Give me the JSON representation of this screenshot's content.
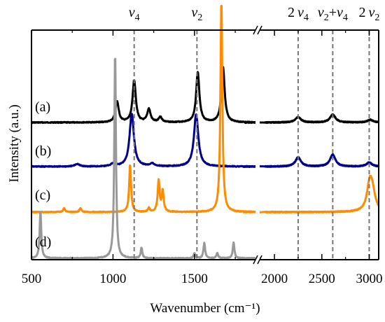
{
  "chart_data": {
    "type": "line",
    "title": "",
    "xlabel": "Wavenumber (cm⁻¹)",
    "ylabel": "Intensity (a.u.)",
    "x_axis_break": [
      1900,
      2000
    ],
    "segments": [
      {
        "xlim": [
          500,
          1900
        ],
        "ticks": [
          500,
          1000,
          1500
        ]
      },
      {
        "xlim": [
          1800,
          3100
        ],
        "ticks": [
          2000,
          2500,
          3000
        ]
      }
    ],
    "top_annotations": [
      {
        "id": "nu4",
        "base": "ν",
        "sub": "4",
        "prefix": "",
        "x": 1130
      },
      {
        "id": "nu2",
        "base": "ν",
        "sub": "2",
        "prefix": "",
        "x": 1515
      },
      {
        "id": "two-nu4",
        "base": "ν",
        "sub": "4",
        "prefix": "2",
        "x": 2250
      },
      {
        "id": "nu2-plus-nu4",
        "base": "ν",
        "sub": "2",
        "prefix": "",
        "suffix_base": "ν",
        "suffix_sub": "4",
        "connector": "+",
        "x": 2615
      },
      {
        "id": "two-nu2",
        "base": "ν",
        "sub": "2",
        "prefix": "2",
        "x": 3000
      }
    ],
    "series": [
      {
        "name": "(a)",
        "color": "#000000",
        "peaks_low": [
          [
            1025,
            0.8
          ],
          [
            1130,
            1.6
          ],
          [
            1220,
            0.5
          ],
          [
            1290,
            0.2
          ],
          [
            1520,
            1.9
          ],
          [
            1675,
            2.1
          ]
        ],
        "peaks_high": [
          [
            2250,
            0.2
          ],
          [
            2615,
            0.3
          ],
          [
            3010,
            0.1
          ]
        ]
      },
      {
        "name": "(b)",
        "color": "#00008b",
        "peaks_low": [
          [
            780,
            0.1
          ],
          [
            1000,
            0.1
          ],
          [
            1115,
            2.0
          ],
          [
            1240,
            0.1
          ],
          [
            1510,
            2.0
          ]
        ],
        "peaks_high": [
          [
            2250,
            0.35
          ],
          [
            2615,
            0.45
          ],
          [
            3000,
            0.15
          ]
        ]
      },
      {
        "name": "(c)",
        "color": "#ff8c00",
        "peaks_low": [
          [
            700,
            0.15
          ],
          [
            800,
            0.15
          ],
          [
            1105,
            1.8
          ],
          [
            1220,
            0.15
          ],
          [
            1280,
            1.2
          ],
          [
            1305,
            0.8
          ],
          [
            1665,
            8.0
          ]
        ],
        "peaks_high": [
          [
            3005,
            1.0
          ],
          [
            3035,
            0.6
          ]
        ]
      },
      {
        "name": "(d)",
        "color": "#999999",
        "peaks_low": [
          [
            555,
            1.8
          ],
          [
            1013,
            7.8
          ],
          [
            1175,
            0.4
          ],
          [
            1500,
            0.2
          ],
          [
            1560,
            0.6
          ],
          [
            1640,
            0.2
          ],
          [
            1740,
            0.6
          ]
        ],
        "peaks_high": []
      }
    ]
  }
}
